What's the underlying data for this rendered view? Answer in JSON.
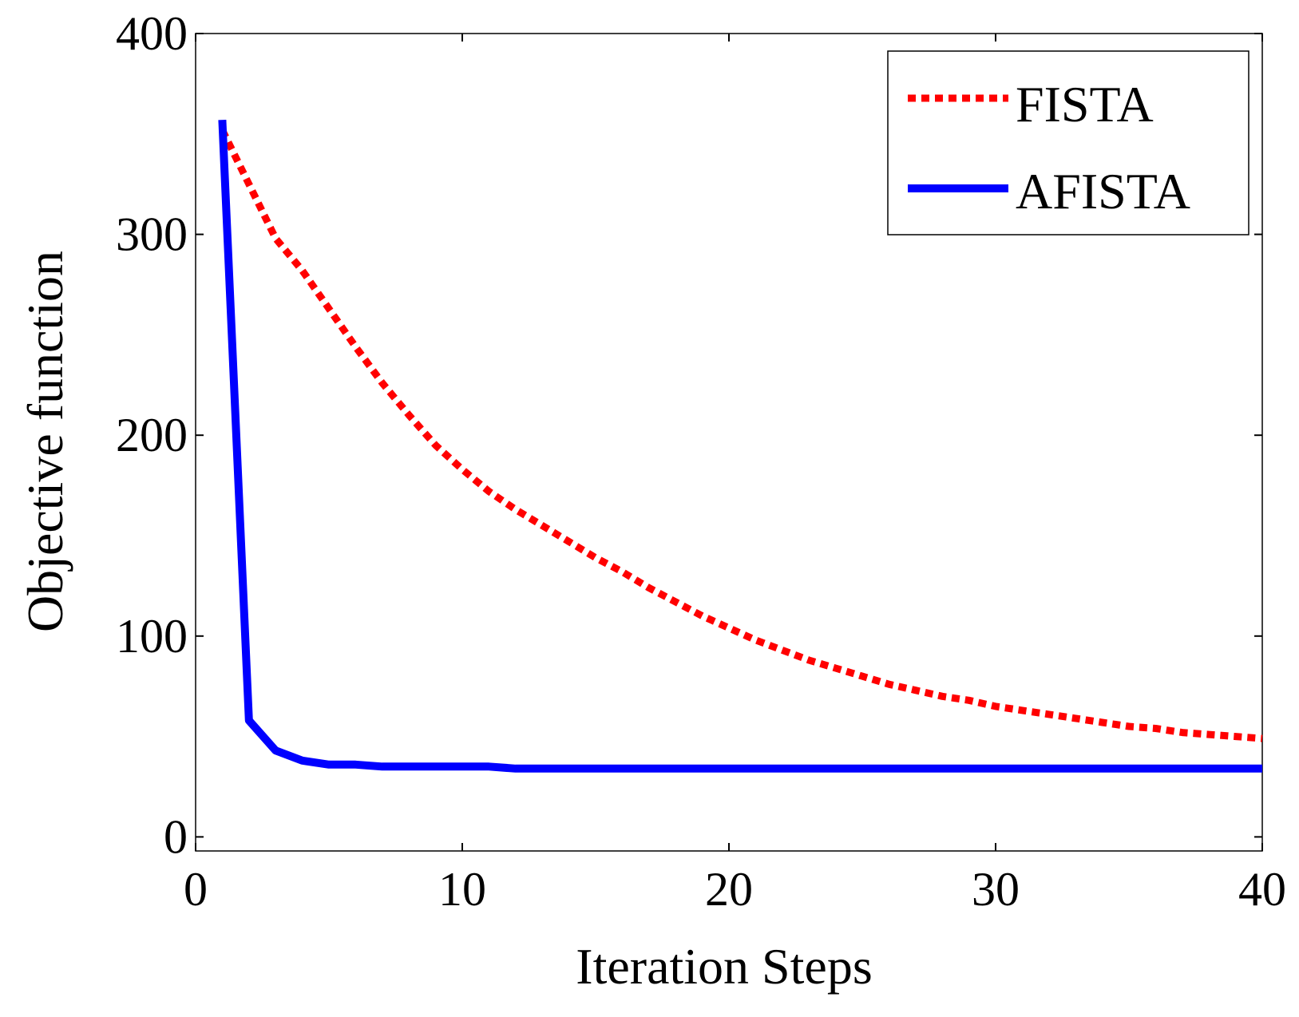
{
  "chart_data": {
    "type": "line",
    "title": "",
    "xlabel": "Iteration Steps",
    "ylabel": "Objective function",
    "xlim": [
      0,
      40
    ],
    "ylim": [
      -7,
      400
    ],
    "xticks": [
      0,
      10,
      20,
      30,
      40
    ],
    "yticks": [
      0,
      100,
      200,
      300,
      400
    ],
    "grid": false,
    "legend_position": "top-right",
    "series": [
      {
        "name": "FISTA",
        "color": "#ff0000",
        "style": "dotted",
        "x": [
          1,
          2,
          3,
          4,
          5,
          6,
          7,
          8,
          9,
          10,
          11,
          12,
          13,
          14,
          15,
          16,
          17,
          18,
          19,
          20,
          21,
          22,
          23,
          24,
          25,
          26,
          27,
          28,
          29,
          30,
          31,
          32,
          33,
          34,
          35,
          36,
          37,
          38,
          39,
          40
        ],
        "y": [
          352,
          325,
          298,
          282,
          263,
          244,
          226,
          210,
          195,
          183,
          172,
          163,
          155,
          147,
          139,
          132,
          124,
          117,
          110,
          104,
          98,
          93,
          88,
          84,
          80,
          76,
          73,
          70,
          68,
          65,
          63,
          61,
          59,
          57,
          55,
          54,
          52,
          51,
          50,
          49
        ]
      },
      {
        "name": "AFISTA",
        "color": "#0000ff",
        "style": "solid",
        "x": [
          1,
          2,
          3,
          4,
          5,
          6,
          7,
          8,
          9,
          10,
          11,
          12,
          13,
          14,
          15,
          16,
          17,
          18,
          19,
          20,
          21,
          22,
          23,
          24,
          25,
          26,
          27,
          28,
          29,
          30,
          31,
          32,
          33,
          34,
          35,
          36,
          37,
          38,
          39,
          40
        ],
        "y": [
          357,
          58,
          43,
          38,
          36,
          36,
          35,
          35,
          35,
          35,
          35,
          34,
          34,
          34,
          34,
          34,
          34,
          34,
          34,
          34,
          34,
          34,
          34,
          34,
          34,
          34,
          34,
          34,
          34,
          34,
          34,
          34,
          34,
          34,
          34,
          34,
          34,
          34,
          34,
          34
        ]
      }
    ]
  }
}
